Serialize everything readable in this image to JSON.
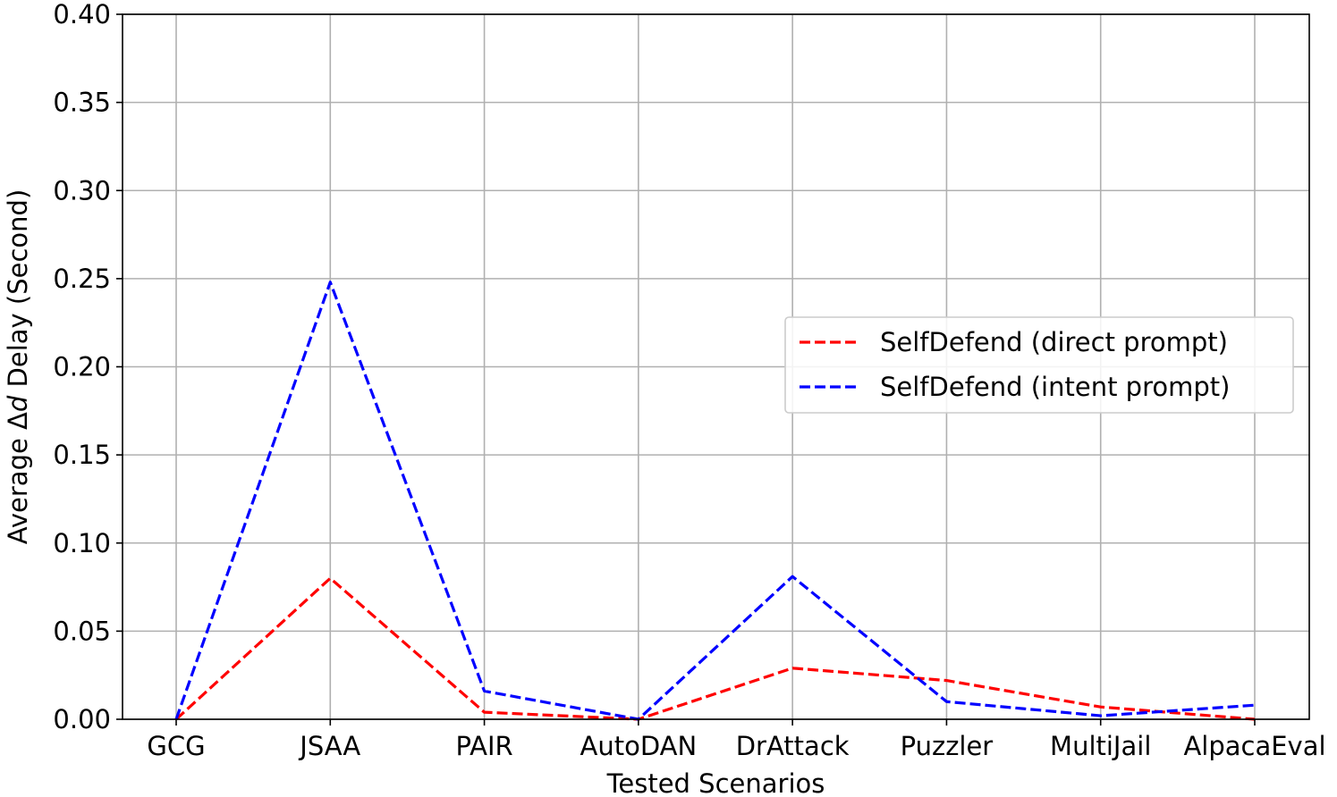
{
  "chart_data": {
    "type": "line",
    "categories": [
      "GCG",
      "JSAA",
      "PAIR",
      "AutoDAN",
      "DrAttack",
      "Puzzler",
      "MultiJail",
      "AlpacaEval"
    ],
    "series": [
      {
        "name": "SelfDefend (direct prompt)",
        "color": "#ff0000",
        "dash": "dashed",
        "values": [
          0.0,
          0.08,
          0.004,
          0.0,
          0.029,
          0.022,
          0.007,
          0.0
        ]
      },
      {
        "name": "SelfDefend (intent prompt)",
        "color": "#0000ff",
        "dash": "dashed",
        "values": [
          0.0,
          0.248,
          0.016,
          0.0,
          0.081,
          0.01,
          0.002,
          0.008
        ]
      }
    ],
    "xlabel": "Tested Scenarios",
    "ylabel_prefix": "Average ",
    "ylabel_symbol": "Δ",
    "ylabel_var": "d",
    "ylabel_suffix": " Delay (Second)",
    "ylim": [
      0,
      0.4
    ],
    "yticks": [
      "0.00",
      "0.05",
      "0.10",
      "0.15",
      "0.20",
      "0.25",
      "0.30",
      "0.35",
      "0.40"
    ],
    "grid": true,
    "legend_position": "center-right"
  }
}
